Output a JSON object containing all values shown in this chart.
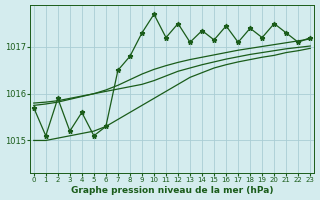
{
  "title": "Graphe pression niveau de la mer (hPa)",
  "bg_color": "#d4ecee",
  "grid_color": "#aacdd4",
  "line_color": "#1a5c1a",
  "x_labels": [
    "0",
    "1",
    "2",
    "3",
    "4",
    "5",
    "6",
    "7",
    "8",
    "9",
    "10",
    "11",
    "12",
    "13",
    "14",
    "15",
    "16",
    "17",
    "18",
    "19",
    "20",
    "21",
    "22",
    "23"
  ],
  "yticks": [
    1015,
    1016,
    1017
  ],
  "ylim": [
    1014.3,
    1017.9
  ],
  "xlim": [
    -0.3,
    23.3
  ],
  "series": {
    "spiky": [
      1015.7,
      1015.1,
      1015.9,
      1015.2,
      1015.6,
      1015.1,
      1015.3,
      1016.5,
      1016.8,
      1017.3,
      1017.7,
      1017.2,
      1017.5,
      1017.1,
      1017.35,
      1017.15,
      1017.45,
      1017.1,
      1017.4,
      1017.2,
      1017.5,
      1017.3,
      1017.1,
      1017.2
    ],
    "trend_low": [
      1015.0,
      1015.0,
      1015.05,
      1015.1,
      1015.15,
      1015.2,
      1015.3,
      1015.45,
      1015.6,
      1015.75,
      1015.9,
      1016.05,
      1016.2,
      1016.35,
      1016.45,
      1016.55,
      1016.62,
      1016.68,
      1016.73,
      1016.78,
      1016.82,
      1016.88,
      1016.92,
      1016.97
    ],
    "trend_mid": [
      1015.8,
      1015.82,
      1015.85,
      1015.9,
      1015.95,
      1016.0,
      1016.05,
      1016.1,
      1016.15,
      1016.2,
      1016.28,
      1016.38,
      1016.48,
      1016.55,
      1016.62,
      1016.68,
      1016.74,
      1016.79,
      1016.84,
      1016.88,
      1016.92,
      1016.96,
      1016.99,
      1017.02
    ],
    "trend_high": [
      1015.75,
      1015.78,
      1015.82,
      1015.88,
      1015.94,
      1016.0,
      1016.08,
      1016.18,
      1016.3,
      1016.42,
      1016.52,
      1016.6,
      1016.67,
      1016.73,
      1016.78,
      1016.83,
      1016.88,
      1016.93,
      1016.97,
      1017.01,
      1017.05,
      1017.09,
      1017.13,
      1017.17
    ]
  }
}
